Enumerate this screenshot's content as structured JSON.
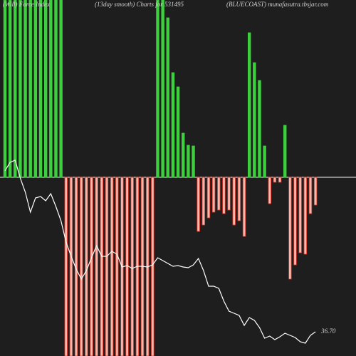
{
  "chart_data": {
    "type": "bar",
    "title": "(Will) Force Index",
    "subtitle": "(13day smooth) Charts for 531495",
    "source": "(BLUECOAST) munafasutra.tbsjar.com",
    "categories": [
      null,
      null,
      null,
      null,
      null,
      null,
      null,
      null,
      null,
      null,
      null,
      null,
      null,
      null,
      null,
      null,
      null,
      null,
      null,
      null,
      null,
      null,
      null,
      null,
      null,
      null,
      null,
      null,
      null,
      null,
      null,
      null,
      null,
      null,
      null,
      null,
      null,
      null,
      null,
      null,
      null,
      null,
      null,
      null,
      null,
      null,
      null,
      null,
      null,
      null,
      null,
      null,
      null,
      null,
      null,
      null,
      null,
      null,
      null,
      null,
      null,
      null
    ],
    "ylim": [
      -251,
      249
    ],
    "y2lim": [
      33.3,
      83.3
    ],
    "series": [
      {
        "color": "#3ecf3e",
        "negative_color": "#e8321e",
        "values": [
          249,
          249,
          249,
          249,
          249,
          249,
          249,
          249,
          249,
          249,
          249,
          249,
          -251,
          -251,
          -251,
          -251,
          -251,
          -251,
          -251,
          -251,
          -251,
          -251,
          -251,
          -251,
          -251,
          -251,
          -251,
          -251,
          -251,
          -251,
          249,
          249,
          224,
          147,
          127,
          62,
          45,
          44,
          -76,
          -67,
          -57,
          -49,
          -46,
          -51,
          -46,
          -67,
          -61,
          -83,
          203,
          161,
          136,
          44,
          -37,
          -7,
          -7,
          73,
          -143,
          -123,
          -106,
          -108,
          -51,
          -39
        ]
      },
      {
        "type": "line",
        "axis": "y2",
        "color": "#ffffff",
        "values": [
          59.3,
          60.5,
          60.8,
          58.3,
          56.3,
          53.5,
          55.5,
          55.7,
          55.1,
          56.1,
          54.3,
          52.3,
          49.3,
          47.3,
          45.5,
          44.1,
          45.3,
          47.1,
          48.8,
          47.3,
          47.3,
          48,
          47.6,
          45.8,
          46,
          45.6,
          45.9,
          45.9,
          45.8,
          46.1,
          47.1,
          46.7,
          46.3,
          45.9,
          46,
          45.8,
          45.7,
          46.1,
          47,
          45.3,
          43.1,
          43.1,
          42.8,
          41,
          39.6,
          39.3,
          39,
          37.6,
          38.7,
          38.3,
          37.3,
          35.8,
          36.1,
          35.6,
          36,
          36.5,
          36.2,
          35.9,
          35.3,
          35.1,
          36.2,
          36.7
        ],
        "value_labels": [
          null,
          null,
          null,
          null,
          null,
          null,
          null,
          null,
          null,
          null,
          null,
          null,
          null,
          null,
          null,
          null,
          null,
          null,
          null,
          null,
          null,
          null,
          null,
          null,
          null,
          null,
          null,
          null,
          null,
          null,
          null,
          null,
          null,
          null,
          null,
          null,
          null,
          null,
          null,
          null,
          null,
          null,
          null,
          null,
          null,
          null,
          null,
          null,
          null,
          null,
          null,
          null,
          null,
          null,
          null,
          null,
          null,
          null,
          null,
          null,
          null,
          "36.70"
        ]
      }
    ]
  }
}
